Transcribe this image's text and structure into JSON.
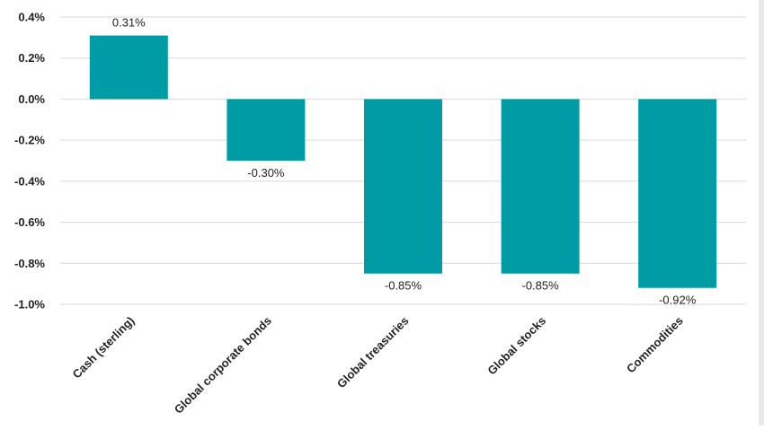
{
  "chart_data": {
    "type": "bar",
    "title": "",
    "xlabel": "",
    "ylabel": "",
    "categories": [
      "Cash (sterling)",
      "Global corporate bonds",
      "Global treasuries",
      "Global stocks",
      "Commodities"
    ],
    "values": [
      0.31,
      -0.3,
      -0.85,
      -0.85,
      -0.92
    ],
    "data_labels": [
      "0.31%",
      "-0.30%",
      "-0.85%",
      "-0.85%",
      "-0.92%"
    ],
    "ylim": [
      -1.0,
      0.4
    ],
    "yticks": [
      0.4,
      0.2,
      0.0,
      -0.2,
      -0.4,
      -0.6,
      -0.8,
      -1.0
    ],
    "ytick_labels": [
      "0.4%",
      "0.2%",
      "0.0%",
      "-0.2%",
      "-0.4%",
      "-0.6%",
      "-0.8%",
      "-1.0%"
    ],
    "bar_color": "#009ca6",
    "grid": true,
    "legend": "none"
  }
}
